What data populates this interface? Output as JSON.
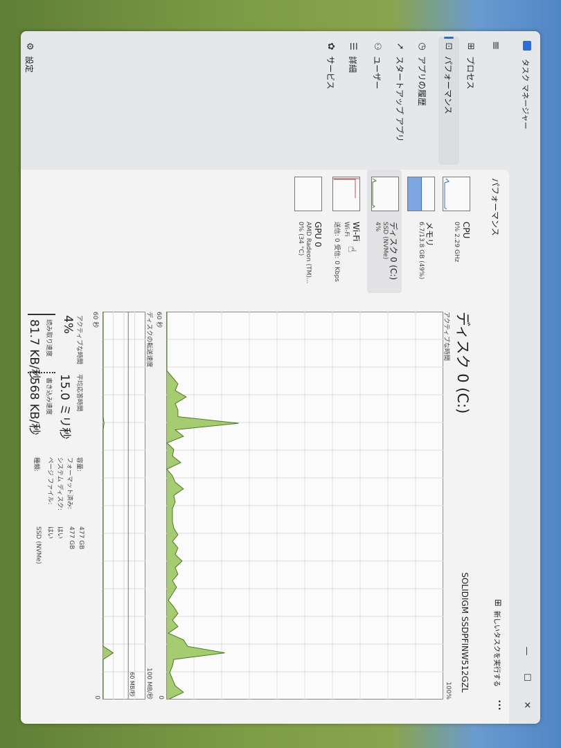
{
  "window": {
    "title": "タスク マネージャー",
    "minimize": "—",
    "maximize": "☐",
    "close": "✕"
  },
  "sidebar": {
    "menu_icon": "hamburger-icon",
    "items": [
      {
        "label": "プロセス",
        "icon": "processes-icon",
        "glyph": "⊞"
      },
      {
        "label": "パフォーマンス",
        "icon": "performance-icon",
        "glyph": "⊡",
        "active": true
      },
      {
        "label": "アプリの履歴",
        "icon": "history-icon",
        "glyph": "◷"
      },
      {
        "label": "スタートアップ アプリ",
        "icon": "startup-icon",
        "glyph": "➚"
      },
      {
        "label": "ユーザー",
        "icon": "users-icon",
        "glyph": "⚇"
      },
      {
        "label": "詳細",
        "icon": "details-icon",
        "glyph": "☰"
      },
      {
        "label": "サービス",
        "icon": "services-icon",
        "glyph": "✿"
      }
    ],
    "settings": {
      "label": "設定",
      "icon": "gear-icon",
      "glyph": "⚙"
    }
  },
  "header": {
    "title": "パフォーマンス",
    "run_task": "新しいタスクを実行する",
    "more": "•••"
  },
  "devices": [
    {
      "name": "CPU",
      "sub1": "0% 2.29 GHz",
      "sub2": ""
    },
    {
      "name": "メモリ",
      "sub1": "6.7/13.8 GB (49%)",
      "sub2": "",
      "fill_percent": 49
    },
    {
      "name": "ディスク 0 (C:)",
      "sub1": "SSD (NVMe)",
      "sub2": "4%",
      "selected": true
    },
    {
      "name": "Wi-Fi",
      "sub1": "Wi-Fi",
      "sub2": "送信: 0 受信: 0 Kbps"
    },
    {
      "name": "GPU 0",
      "sub1": "AMD Radeon (TM)...",
      "sub2": "0% (34 °C)"
    }
  ],
  "colors": {
    "accent": "#2b6fd6",
    "disk_fill": "#9cc763",
    "disk_line": "#4a7a1c",
    "memory": "#7ea6e0",
    "wifi": "#c0505a",
    "cpu": "#2b6fd6"
  },
  "detail": {
    "title": "ディスク 0 (C:)",
    "model": "SOLIDIGM SSDPFINW512GZL",
    "active_label": "アクティブな時間",
    "active_max": "100%",
    "time_left": "60 秒",
    "time_right": "0",
    "transfer_label": "ディスクの転送速度",
    "transfer_max": "100 MB/秒",
    "transfer_mid": "60 MB/秒",
    "time_left2": "60 秒",
    "time_right2": "0",
    "stats": {
      "active_time_label": "アクティブな時間",
      "active_time": "4%",
      "response_label": "平均応答時間",
      "response": "15.0 ミリ秒",
      "read_label": "読み取り速度",
      "read": "81.7 KB/秒",
      "write_label": "書き込み速度",
      "write": "568 KB/秒"
    },
    "props": [
      {
        "k": "容量:",
        "v": "477 GB"
      },
      {
        "k": "フォーマット済み:",
        "v": "477 GB"
      },
      {
        "k": "システム ディスク:",
        "v": "はい"
      },
      {
        "k": "ページ ファイル:",
        "v": "はい"
      },
      {
        "k": "種類:",
        "v": "SSD (NVMe)"
      }
    ]
  },
  "chart_data": [
    {
      "type": "area",
      "ylabel": "アクティブな時間",
      "ylim": [
        0,
        100
      ],
      "xlim": [
        60,
        0
      ],
      "x_unit": "秒",
      "grid": true,
      "values": [
        0,
        0,
        0,
        0,
        0,
        0,
        0,
        0,
        0,
        0,
        2,
        4,
        3,
        7,
        3,
        4,
        4,
        26,
        3,
        6,
        0,
        2.5,
        2,
        5,
        0,
        2,
        3,
        6,
        2.5,
        3,
        2,
        2,
        2,
        2.5,
        4,
        2,
        4,
        3,
        5.5,
        3,
        4,
        2,
        3.5,
        2,
        0.5,
        2.5,
        4,
        2,
        4,
        0.5,
        6,
        7.5,
        21,
        2.5,
        2,
        1,
        2,
        3,
        6,
        1
      ]
    },
    {
      "type": "area",
      "ylabel": "ディスクの転送速度",
      "ylim": [
        0,
        100
      ],
      "y_unit": "MB/秒",
      "reference_line": 60,
      "xlim": [
        60,
        0
      ],
      "grid": true,
      "values": [
        0,
        0,
        0,
        0,
        0,
        0,
        0,
        0,
        0,
        0,
        0,
        0,
        0,
        0,
        0,
        0,
        0,
        2,
        0,
        0,
        0,
        0,
        0,
        0,
        0,
        0,
        0,
        0,
        0,
        0,
        0,
        0,
        0,
        0,
        0,
        0,
        0,
        0,
        0,
        0,
        0,
        0,
        0,
        0,
        0,
        0,
        0,
        0,
        0,
        0,
        0,
        0,
        24,
        0,
        0,
        0,
        0,
        0,
        0,
        0
      ]
    }
  ]
}
